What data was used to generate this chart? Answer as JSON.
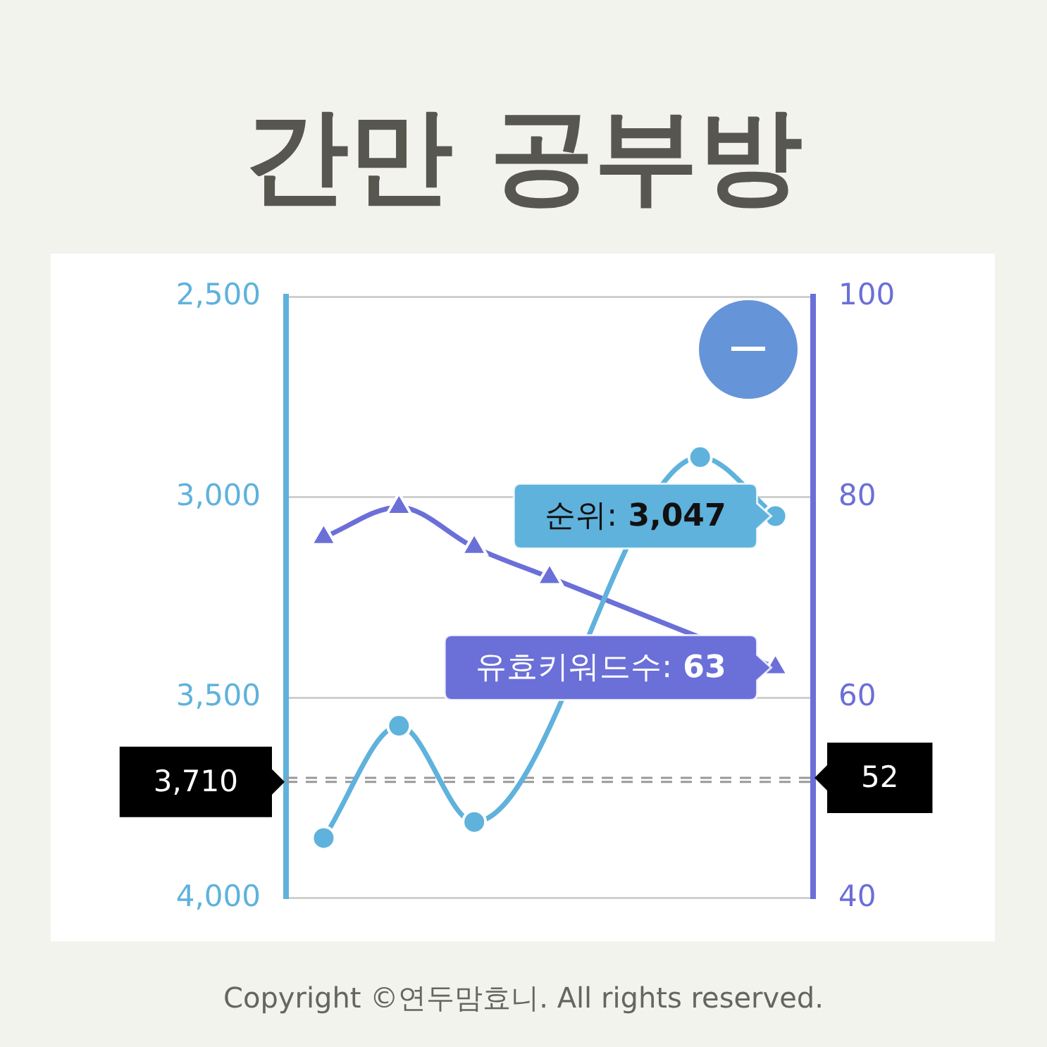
{
  "chart_data": {
    "type": "line",
    "title": "간만 공부방",
    "categories": [
      null,
      null,
      null,
      null,
      null,
      null,
      null
    ],
    "series": [
      {
        "color": "#5fb2dc",
        "marker": "circle",
        "values": [
          3850,
          3570,
          3810,
          null,
          null,
          2900,
          3047
        ]
      },
      {
        "color": "#6b6fd8",
        "marker": "triangle",
        "axis": "y2",
        "values": [
          76,
          79,
          75,
          72,
          null,
          null,
          63
        ]
      }
    ],
    "ylim": [
      4000,
      2500
    ],
    "yticks": [
      {
        "value": 2500,
        "label": "2,500"
      },
      {
        "value": 3000,
        "label": "3,000"
      },
      {
        "value": 3500,
        "label": "3,500"
      },
      {
        "value": 4000,
        "label": "4,000"
      }
    ],
    "y2lim": [
      40,
      100
    ],
    "y2ticks": [
      40,
      60,
      80,
      100
    ],
    "ref_lines": [
      {
        "axis": "y",
        "value": 3710,
        "label": "3,710",
        "color": "#999999",
        "line_style": "dashed"
      },
      {
        "axis": "y2",
        "value": 52,
        "label": "52",
        "color": "#999999",
        "line_style": "dashed"
      }
    ],
    "annotations": [
      "순위: 3,047",
      "유효키워드수: 63",
      "Copyright ©연두맘효니. All rights reserved."
    ],
    "grid": "y",
    "legend": false,
    "tick_labels": "y",
    "line_style": "solid"
  }
}
